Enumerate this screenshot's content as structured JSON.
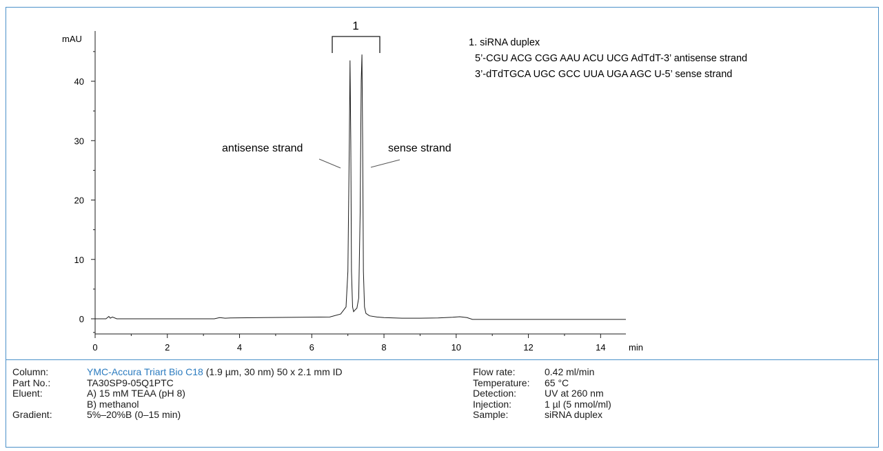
{
  "chart_data": {
    "type": "line",
    "title": "",
    "xlabel": "min",
    "ylabel": "mAU",
    "xlim": [
      0,
      14.7
    ],
    "ylim": [
      0,
      48
    ],
    "x_ticks": [
      0,
      2,
      4,
      6,
      8,
      10,
      12,
      14
    ],
    "y_ticks": [
      0,
      10,
      20,
      30,
      40
    ],
    "grid": false,
    "series": [
      {
        "x": [
          0.0,
          0.3,
          0.38,
          0.42,
          0.48,
          0.6,
          3.3,
          3.45,
          3.6,
          3.75,
          6.5,
          6.8,
          6.95,
          7.0,
          7.04,
          7.06,
          7.08,
          7.1,
          7.13,
          7.16,
          7.2,
          7.25,
          7.3,
          7.34,
          7.37,
          7.39,
          7.41,
          7.43,
          7.46,
          7.5,
          7.6,
          7.8,
          8.0,
          8.5,
          9.0,
          9.5,
          9.9,
          10.1,
          10.3,
          10.45,
          10.6,
          11.0,
          12.0,
          13.0,
          14.0,
          14.7
        ],
        "y": [
          0.0,
          0.0,
          0.4,
          0.1,
          0.3,
          0.0,
          0.0,
          0.2,
          0.1,
          0.15,
          0.3,
          0.8,
          2.0,
          8.0,
          30.0,
          43.5,
          30.0,
          8.0,
          2.0,
          1.2,
          1.5,
          1.8,
          3.5,
          18.0,
          40.0,
          44.5,
          30.0,
          8.0,
          2.0,
          0.9,
          0.5,
          0.3,
          0.2,
          0.1,
          0.1,
          0.15,
          0.25,
          0.35,
          0.2,
          -0.1,
          -0.1,
          -0.1,
          -0.1,
          -0.1,
          -0.1,
          -0.1
        ]
      }
    ],
    "annotations": {
      "peak_number": "1",
      "antisense": "antisense strand",
      "sense": "sense strand"
    },
    "legend": {
      "line1": "1. siRNA duplex",
      "line2": "5’-CGU ACG CGG AAU ACU UCG AdTdT-3’ antisense strand",
      "line3": "3’-dTdTGCA UGC GCC UUA UGA AGC U-5’ sense strand"
    }
  },
  "conditions": {
    "left": [
      {
        "label": "Column:",
        "value_link": "YMC-Accura Triart Bio C18",
        "value": " (1.9 µm, 30 nm) 50 x 2.1 mm ID"
      },
      {
        "label": "Part No.:",
        "value_link": "",
        "value": "TA30SP9-05Q1PTC"
      },
      {
        "label": "Eluent:",
        "value_link": "",
        "value": "A) 15 mM TEAA (pH 8)"
      },
      {
        "label": "",
        "value_link": "",
        "value": "B) methanol"
      },
      {
        "label": "Gradient:",
        "value_link": "",
        "value": "5%–20%B (0–15 min)"
      }
    ],
    "right": [
      {
        "label": "Flow rate:",
        "value": "0.42 ml/min"
      },
      {
        "label": "Temperature:",
        "value": "65 °C"
      },
      {
        "label": "Detection:",
        "value": "UV at 260 nm"
      },
      {
        "label": "Injection:",
        "value": "1 µl (5 nmol/ml)"
      },
      {
        "label": "Sample:",
        "value": "siRNA duplex"
      }
    ]
  },
  "colors": {
    "frame": "#4a90c8",
    "link": "#2b7bbf",
    "trace": "#1a1a1a"
  }
}
